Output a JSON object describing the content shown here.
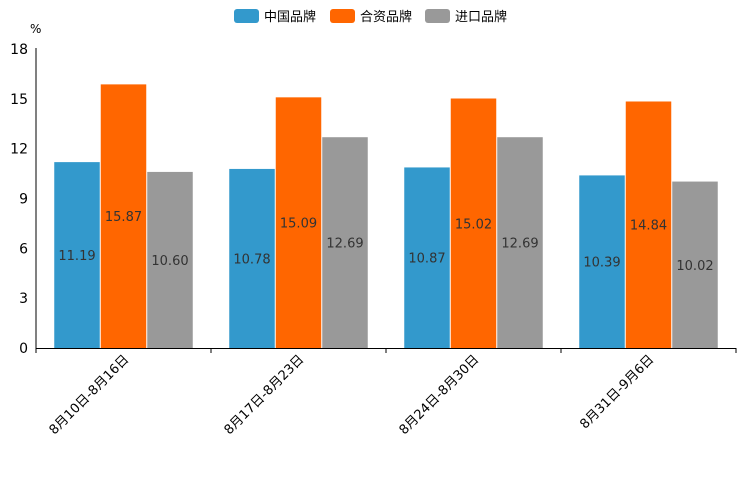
{
  "chart_data": {
    "type": "bar",
    "title": "",
    "xlabel": "",
    "ylabel": "%",
    "ylim": [
      0,
      18
    ],
    "yticks": [
      0,
      3,
      6,
      9,
      12,
      15,
      18
    ],
    "categories": [
      "8月10日-8月16日",
      "8月17日-8月23日",
      "8月24日-8月30日",
      "8月31日-9月6日"
    ],
    "series": [
      {
        "name": "中国品牌",
        "color": "#3399cc",
        "values": [
          11.19,
          10.78,
          10.87,
          10.39
        ],
        "labels": [
          "11.19",
          "10.78",
          "10.87",
          "10.39"
        ]
      },
      {
        "name": "合资品牌",
        "color": "#ff6600",
        "values": [
          15.87,
          15.09,
          15.02,
          14.84
        ],
        "labels": [
          "15.87",
          "15.09",
          "15.02",
          "14.84"
        ]
      },
      {
        "name": "进口品牌",
        "color": "#999999",
        "values": [
          10.6,
          12.69,
          12.69,
          10.02
        ],
        "labels": [
          "10.60",
          "12.69",
          "12.69",
          "10.02"
        ]
      }
    ],
    "legend_position": "top-center",
    "grid": false
  }
}
